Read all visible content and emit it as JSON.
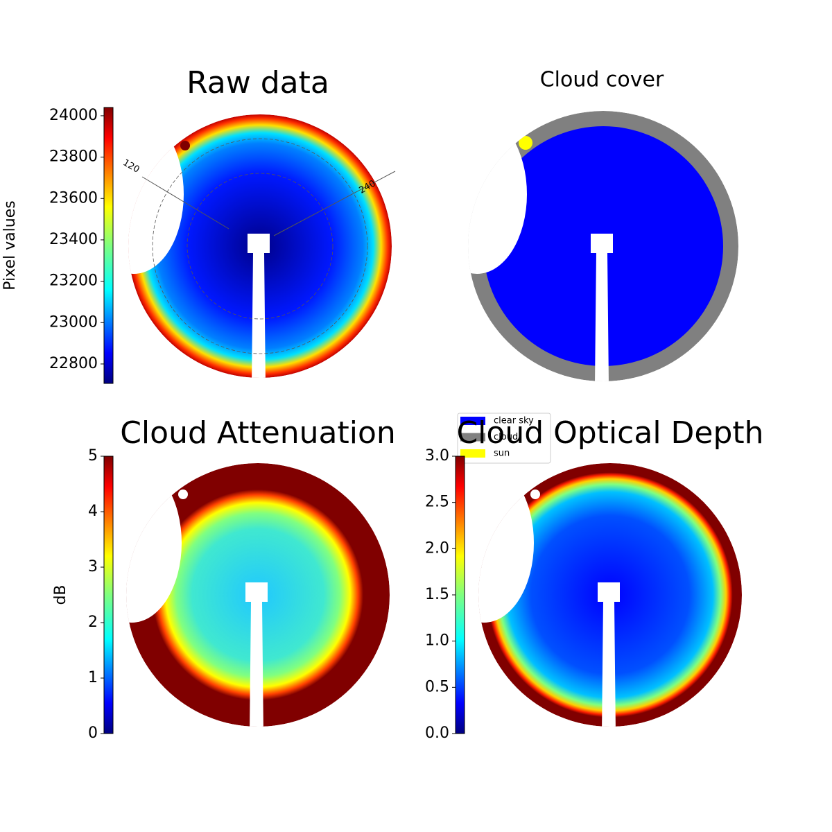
{
  "chart_data": [
    {
      "type": "image",
      "title": "Raw data",
      "colorbar_label": "Pixel values",
      "clim": [
        22706,
        24040
      ],
      "cticks": [
        22800,
        23000,
        23200,
        23400,
        23600,
        23800,
        24000
      ],
      "colormap": "jet",
      "annotations": [
        "120",
        "240"
      ]
    },
    {
      "type": "image",
      "title": "Cloud cover",
      "series": [
        {
          "name": "clear sky",
          "color": "#0000ff"
        },
        {
          "name": "cloud",
          "color": "#808080"
        },
        {
          "name": "sun",
          "color": "#ffff00"
        }
      ]
    },
    {
      "type": "image",
      "title": "Cloud Attenuation",
      "colorbar_label": "dB",
      "clim": [
        0,
        5
      ],
      "cticks": [
        0,
        1,
        2,
        3,
        4,
        5
      ],
      "colormap": "jet"
    },
    {
      "type": "image",
      "title": "Cloud Optical Depth",
      "clim": [
        0,
        3
      ],
      "cticks": [
        {
          "value": 0,
          "label": "0.0"
        },
        0.5,
        {
          "value": 1,
          "label": "1.0"
        },
        1.5,
        {
          "value": 2,
          "label": "2.0"
        },
        2.5,
        {
          "value": 3,
          "label": "3.0"
        }
      ],
      "colormap": "jet"
    }
  ]
}
